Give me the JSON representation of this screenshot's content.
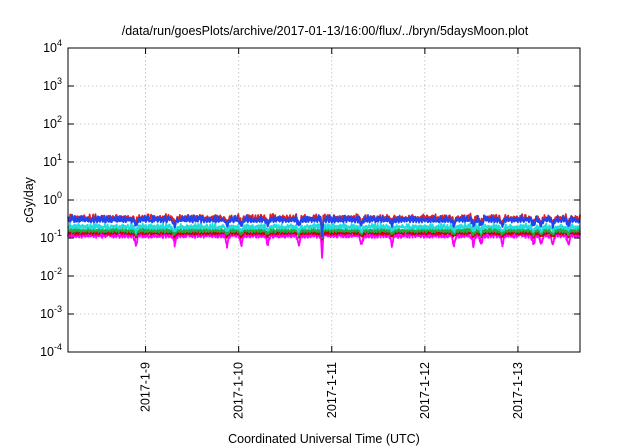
{
  "chart_data": {
    "type": "line",
    "title": "/data/run/goesPlots/archive/2017-01-13/16:00/flux/../bryn/5daysMoon.plot",
    "xlabel": "Coordinated Universal Time (UTC)",
    "ylabel": "cGy/day",
    "y_scale": "log",
    "ylim": [
      0.0001,
      10000
    ],
    "xlim": [
      "2017-01-08 04:00",
      "2017-01-13 16:00"
    ],
    "grid": true,
    "legend": "none",
    "y_ticks": [
      {
        "value": 0.0001,
        "base": "10",
        "exp": "-4"
      },
      {
        "value": 0.001,
        "base": "10",
        "exp": "-3"
      },
      {
        "value": 0.01,
        "base": "10",
        "exp": "-2"
      },
      {
        "value": 0.1,
        "base": "10",
        "exp": "-1"
      },
      {
        "value": 1,
        "base": "10",
        "exp": "0"
      },
      {
        "value": 10,
        "base": "10",
        "exp": "1"
      },
      {
        "value": 100,
        "base": "10",
        "exp": "2"
      },
      {
        "value": 1000,
        "base": "10",
        "exp": "3"
      },
      {
        "value": 10000,
        "base": "10",
        "exp": "4"
      }
    ],
    "x_ticks": [
      {
        "value": "2017-01-09 00:00",
        "label": "2017-1-9"
      },
      {
        "value": "2017-01-10 00:00",
        "label": "2017-1-10"
      },
      {
        "value": "2017-01-11 00:00",
        "label": "2017-1-11"
      },
      {
        "value": "2017-01-12 00:00",
        "label": "2017-1-12"
      },
      {
        "value": "2017-01-13 00:00",
        "label": "2017-1-13"
      }
    ],
    "series": [
      {
        "color": "#ff00ff",
        "baseline": 0.12,
        "variation": 0.12,
        "dip_factor": 0.55,
        "deep_dip": 0.03
      },
      {
        "color": "#cc0000",
        "baseline": 0.14,
        "variation": 0.08,
        "dip_factor": 0.8,
        "deep_dip": 0.09
      },
      {
        "color": "#22aa44",
        "baseline": 0.16,
        "variation": 0.08,
        "dip_factor": 0.8,
        "deep_dip": 0.1
      },
      {
        "color": "#22dddd",
        "baseline": 0.2,
        "variation": 0.1,
        "dip_factor": 0.78,
        "deep_dip": 0.11
      },
      {
        "color": "#dd2222",
        "baseline": 0.34,
        "variation": 0.12,
        "dip_factor": 0.72,
        "deep_dip": 0.11
      },
      {
        "color": "#2244ee",
        "baseline": 0.31,
        "variation": 0.14,
        "dip_factor": 0.7,
        "deep_dip": 0.11
      }
    ]
  }
}
